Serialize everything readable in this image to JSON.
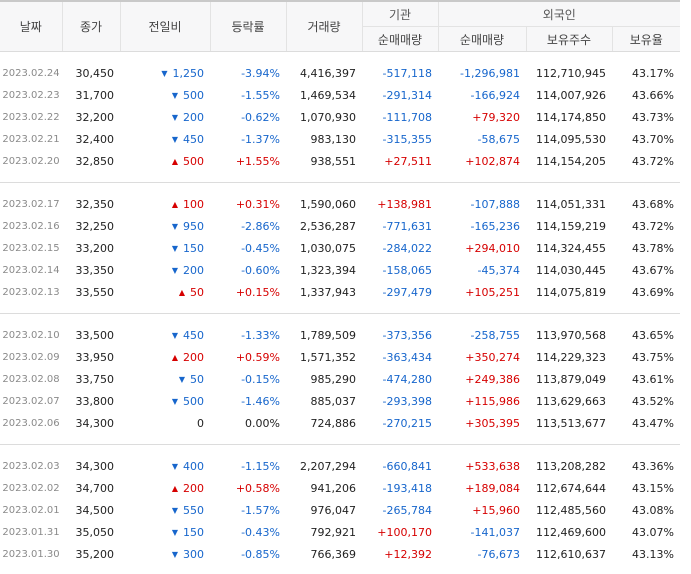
{
  "headers": {
    "date": "날짜",
    "close": "종가",
    "change": "전일비",
    "rate": "등락률",
    "volume": "거래량",
    "institution": "기관",
    "foreign": "외국인",
    "inst_net": "순매매량",
    "for_net": "순매매량",
    "shares": "보유주수",
    "ratio": "보유율"
  },
  "groups": [
    [
      {
        "date": "2023.02.24",
        "close": "30,450",
        "dir": "down",
        "change": "1,250",
        "rate": "-3.94%",
        "volume": "4,416,397",
        "inst": "-517,118",
        "foreign_net": "-1,296,981",
        "shares": "112,710,945",
        "ratio": "43.17%"
      },
      {
        "date": "2023.02.23",
        "close": "31,700",
        "dir": "down",
        "change": "500",
        "rate": "-1.55%",
        "volume": "1,469,534",
        "inst": "-291,314",
        "foreign_net": "-166,924",
        "shares": "114,007,926",
        "ratio": "43.66%"
      },
      {
        "date": "2023.02.22",
        "close": "32,200",
        "dir": "down",
        "change": "200",
        "rate": "-0.62%",
        "volume": "1,070,930",
        "inst": "-111,708",
        "foreign_net": "+79,320",
        "shares": "114,174,850",
        "ratio": "43.73%"
      },
      {
        "date": "2023.02.21",
        "close": "32,400",
        "dir": "down",
        "change": "450",
        "rate": "-1.37%",
        "volume": "983,130",
        "inst": "-315,355",
        "foreign_net": "-58,675",
        "shares": "114,095,530",
        "ratio": "43.70%"
      },
      {
        "date": "2023.02.20",
        "close": "32,850",
        "dir": "up",
        "change": "500",
        "rate": "+1.55%",
        "volume": "938,551",
        "inst": "+27,511",
        "foreign_net": "+102,874",
        "shares": "114,154,205",
        "ratio": "43.72%"
      }
    ],
    [
      {
        "date": "2023.02.17",
        "close": "32,350",
        "dir": "up",
        "change": "100",
        "rate": "+0.31%",
        "volume": "1,590,060",
        "inst": "+138,981",
        "foreign_net": "-107,888",
        "shares": "114,051,331",
        "ratio": "43.68%"
      },
      {
        "date": "2023.02.16",
        "close": "32,250",
        "dir": "down",
        "change": "950",
        "rate": "-2.86%",
        "volume": "2,536,287",
        "inst": "-771,631",
        "foreign_net": "-165,236",
        "shares": "114,159,219",
        "ratio": "43.72%"
      },
      {
        "date": "2023.02.15",
        "close": "33,200",
        "dir": "down",
        "change": "150",
        "rate": "-0.45%",
        "volume": "1,030,075",
        "inst": "-284,022",
        "foreign_net": "+294,010",
        "shares": "114,324,455",
        "ratio": "43.78%"
      },
      {
        "date": "2023.02.14",
        "close": "33,350",
        "dir": "down",
        "change": "200",
        "rate": "-0.60%",
        "volume": "1,323,394",
        "inst": "-158,065",
        "foreign_net": "-45,374",
        "shares": "114,030,445",
        "ratio": "43.67%"
      },
      {
        "date": "2023.02.13",
        "close": "33,550",
        "dir": "up",
        "change": "50",
        "rate": "+0.15%",
        "volume": "1,337,943",
        "inst": "-297,479",
        "foreign_net": "+105,251",
        "shares": "114,075,819",
        "ratio": "43.69%"
      }
    ],
    [
      {
        "date": "2023.02.10",
        "close": "33,500",
        "dir": "down",
        "change": "450",
        "rate": "-1.33%",
        "volume": "1,789,509",
        "inst": "-373,356",
        "foreign_net": "-258,755",
        "shares": "113,970,568",
        "ratio": "43.65%"
      },
      {
        "date": "2023.02.09",
        "close": "33,950",
        "dir": "up",
        "change": "200",
        "rate": "+0.59%",
        "volume": "1,571,352",
        "inst": "-363,434",
        "foreign_net": "+350,274",
        "shares": "114,229,323",
        "ratio": "43.75%"
      },
      {
        "date": "2023.02.08",
        "close": "33,750",
        "dir": "down",
        "change": "50",
        "rate": "-0.15%",
        "volume": "985,290",
        "inst": "-474,280",
        "foreign_net": "+249,386",
        "shares": "113,879,049",
        "ratio": "43.61%"
      },
      {
        "date": "2023.02.07",
        "close": "33,800",
        "dir": "down",
        "change": "500",
        "rate": "-1.46%",
        "volume": "885,037",
        "inst": "-293,398",
        "foreign_net": "+115,986",
        "shares": "113,629,663",
        "ratio": "43.52%"
      },
      {
        "date": "2023.02.06",
        "close": "34,300",
        "dir": "none",
        "change": "0",
        "rate": "0.00%",
        "volume": "724,886",
        "inst": "-270,215",
        "foreign_net": "+305,395",
        "shares": "113,513,677",
        "ratio": "43.47%"
      }
    ],
    [
      {
        "date": "2023.02.03",
        "close": "34,300",
        "dir": "down",
        "change": "400",
        "rate": "-1.15%",
        "volume": "2,207,294",
        "inst": "-660,841",
        "foreign_net": "+533,638",
        "shares": "113,208,282",
        "ratio": "43.36%"
      },
      {
        "date": "2023.02.02",
        "close": "34,700",
        "dir": "up",
        "change": "200",
        "rate": "+0.58%",
        "volume": "941,206",
        "inst": "-193,418",
        "foreign_net": "+189,084",
        "shares": "112,674,644",
        "ratio": "43.15%"
      },
      {
        "date": "2023.02.01",
        "close": "34,500",
        "dir": "down",
        "change": "550",
        "rate": "-1.57%",
        "volume": "976,047",
        "inst": "-265,784",
        "foreign_net": "+15,960",
        "shares": "112,485,560",
        "ratio": "43.08%"
      },
      {
        "date": "2023.01.31",
        "close": "35,050",
        "dir": "down",
        "change": "150",
        "rate": "-0.43%",
        "volume": "792,921",
        "inst": "+100,170",
        "foreign_net": "-141,037",
        "shares": "112,469,600",
        "ratio": "43.07%"
      },
      {
        "date": "2023.01.30",
        "close": "35,200",
        "dir": "down",
        "change": "300",
        "rate": "-0.85%",
        "volume": "766,369",
        "inst": "+12,392",
        "foreign_net": "-76,673",
        "shares": "112,610,637",
        "ratio": "43.13%"
      }
    ]
  ],
  "colors": {
    "up": "#d60000",
    "down": "#1766cc"
  },
  "icons": {
    "up": "triangle-up-icon",
    "down": "triangle-down-icon"
  }
}
